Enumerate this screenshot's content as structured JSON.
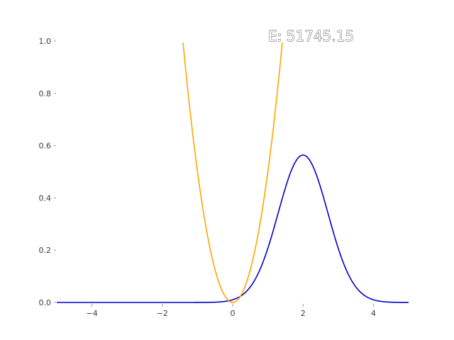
{
  "chart_data": {
    "type": "line",
    "title": "",
    "xlabel": "",
    "ylabel": "",
    "xlim": [
      -5,
      5
    ],
    "ylim": [
      0,
      1.0
    ],
    "x_ticks": [
      "−4",
      "−2",
      "0",
      "2",
      "4"
    ],
    "y_ticks": [
      "0.0",
      "0.2",
      "0.4",
      "0.6",
      "0.8",
      "1.0"
    ],
    "grid": false,
    "annotation": "E: 51745.15",
    "series": [
      {
        "color": "#0000cc",
        "shape": "gaussian",
        "mean": 2.0,
        "std": 0.7071,
        "peak": 0.564,
        "x": [
          -5,
          -2,
          -1,
          0,
          0.5,
          1,
          1.5,
          2,
          2.5,
          3,
          3.5,
          4,
          5
        ],
        "values": [
          0.0,
          0.0,
          0.0,
          0.01,
          0.06,
          0.208,
          0.44,
          0.564,
          0.44,
          0.208,
          0.06,
          0.01,
          0.0
        ]
      },
      {
        "color": "#ffa500",
        "shape": "parabola",
        "x_range": [
          -1.41,
          1.41
        ],
        "x": [
          -1.41,
          -1.0,
          -0.5,
          0,
          0.5,
          1.0,
          1.41
        ],
        "values": [
          1.0,
          0.5,
          0.125,
          0.0,
          0.125,
          0.5,
          1.0
        ]
      }
    ]
  }
}
